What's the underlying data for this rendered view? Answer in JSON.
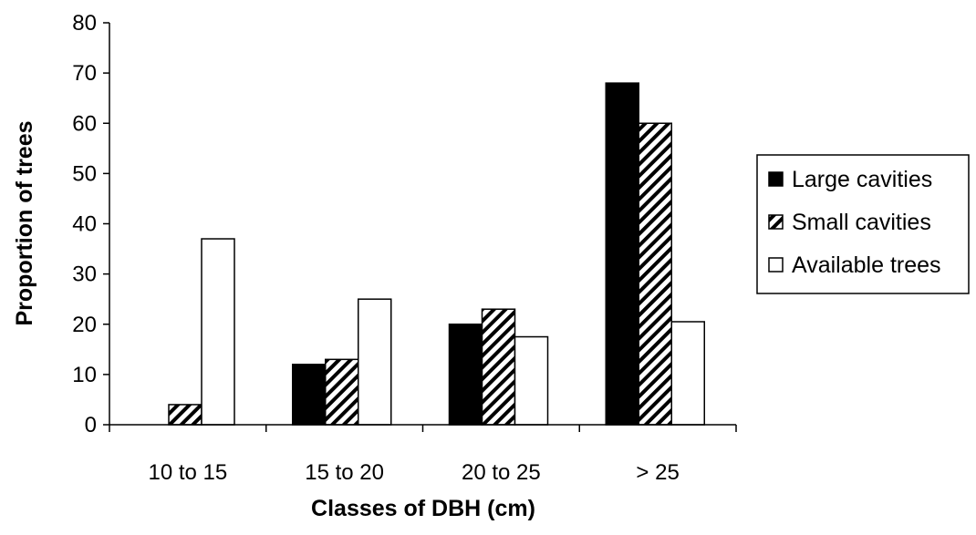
{
  "chart_data": {
    "type": "bar",
    "title": "",
    "xlabel": "Classes of DBH (cm)",
    "ylabel": "Proportion of trees",
    "categories": [
      "10 to 15",
      "15 to 20",
      "20 to 25",
      "> 25"
    ],
    "ylim": [
      0,
      80
    ],
    "yticks": [
      0,
      10,
      20,
      30,
      40,
      50,
      60,
      70,
      80
    ],
    "grid": false,
    "legend_position": "right",
    "series": [
      {
        "name": "Large cavities",
        "values": [
          0,
          12,
          20,
          68
        ],
        "fill": "solid",
        "color": "#000000"
      },
      {
        "name": "Small cavities",
        "values": [
          4,
          13,
          23,
          60
        ],
        "fill": "diagonal-hatch",
        "color": "#000000"
      },
      {
        "name": "Available trees",
        "values": [
          37,
          25,
          17.5,
          20.5
        ],
        "fill": "none",
        "color": "#ffffff"
      }
    ]
  }
}
